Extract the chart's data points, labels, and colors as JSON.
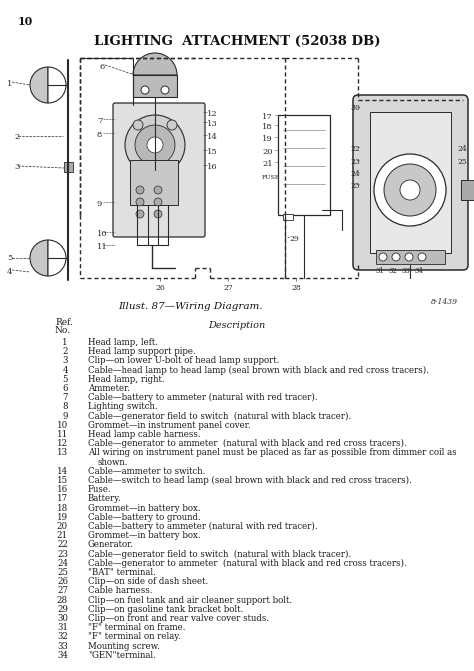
{
  "page_number": "10",
  "title": "LIGHTING  ATTACHMENT (52038 DB)",
  "caption": "Illust. 87—Wiring Diagram.",
  "figure_id": "8-1439",
  "items": [
    [
      1,
      "Head lamp, left."
    ],
    [
      2,
      "Head lamp support pipe."
    ],
    [
      3,
      "Clip—on lower U-bolt of head lamp support."
    ],
    [
      4,
      "Cable—head lamp to head lamp (seal brown with black and red cross tracers)."
    ],
    [
      5,
      "Head lamp, right."
    ],
    [
      6,
      "Ammeter."
    ],
    [
      7,
      "Cable—battery to ammeter (natural with red tracer)."
    ],
    [
      8,
      "Lighting switch."
    ],
    [
      9,
      "Cable—generator field to switch  (natural with black tracer)."
    ],
    [
      10,
      "Grommet—in instrument panel cover."
    ],
    [
      11,
      "Head lamp cable harness."
    ],
    [
      12,
      "Cable—generator to ammeter  (natural with black and red cross tracers)."
    ],
    [
      13,
      "All wiring on instrument panel must be placed as far as possible from dimmer coil as\n       shown."
    ],
    [
      14,
      "Cable—ammeter to switch."
    ],
    [
      15,
      "Cable—switch to head lamp (seal brown with black and red cross tracers)."
    ],
    [
      16,
      "Fuse."
    ],
    [
      17,
      "Battery."
    ],
    [
      18,
      "Grommet—in battery box."
    ],
    [
      19,
      "Cable—battery to ground."
    ],
    [
      20,
      "Cable—battery to ammeter (natural with red tracer)."
    ],
    [
      21,
      "Grommet—in battery box."
    ],
    [
      22,
      "Generator."
    ],
    [
      23,
      "Cable—generator field to switch  (natural with black tracer)."
    ],
    [
      24,
      "Cable—generator to ammeter  (natural with black and red cross tracers)."
    ],
    [
      25,
      "\"BAT\" terminal."
    ],
    [
      26,
      "Clip—on side of dash sheet."
    ],
    [
      27,
      "Cable harness."
    ],
    [
      28,
      "Clip—on fuel tank and air cleaner support bolt."
    ],
    [
      29,
      "Clip—on gasoline tank bracket bolt."
    ],
    [
      30,
      "Clip—on front and rear valve cover studs."
    ],
    [
      31,
      "\"F\" terminal on frame."
    ],
    [
      32,
      "\"F\" terminal on relay."
    ],
    [
      33,
      "Mounting screw."
    ],
    [
      34,
      "\"GEN\"terminal."
    ]
  ],
  "text_color": "#1a1a1a",
  "dgray": "#2a2a2a"
}
